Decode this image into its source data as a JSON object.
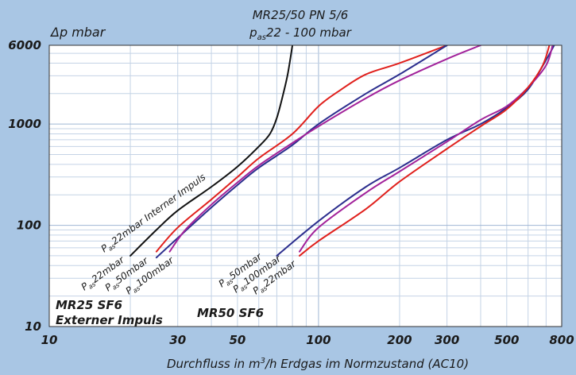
{
  "chart_data": {
    "type": "line",
    "title_line1": "MR25/50 PN 5/6",
    "title_line2_prefix": "p",
    "title_line2_sub": "as",
    "title_line2_rest": "22 - 100 mbar",
    "ylabel": "Δp  mbar",
    "xlabel_prefix": "Durchfluss in m",
    "xlabel_sup": "3",
    "xlabel_rest": "/h Erdgas im Normzustand (AC10)",
    "xscale": "log",
    "yscale": "log",
    "xlim": [
      10,
      800
    ],
    "ylim": [
      10,
      6000
    ],
    "x_ticks": [
      {
        "v": 10,
        "label": "10"
      },
      {
        "v": 30,
        "label": "30"
      },
      {
        "v": 50,
        "label": "50"
      },
      {
        "v": 100,
        "label": "100"
      },
      {
        "v": 200,
        "label": "200"
      },
      {
        "v": 300,
        "label": "300"
      },
      {
        "v": 500,
        "label": "500"
      },
      {
        "v": 800,
        "label": "800"
      }
    ],
    "y_ticks": [
      {
        "v": 10,
        "label": "10"
      },
      {
        "v": 100,
        "label": "100"
      },
      {
        "v": 1000,
        "label": "1000"
      },
      {
        "v": 6000,
        "label": "6000"
      }
    ],
    "grid": true,
    "group_labels": {
      "mr25_line1": "MR25 SF6",
      "mr25_line2": "Externer Impuls",
      "mr50": "MR50 SF6"
    },
    "series": [
      {
        "id": "mr25-22-intern",
        "name_prefix": "P",
        "name_sub": "as",
        "name_rest": "22mbar Interner Impuls",
        "color": "#111111",
        "points": [
          [
            20,
            50
          ],
          [
            25,
            90
          ],
          [
            30,
            140
          ],
          [
            40,
            240
          ],
          [
            50,
            380
          ],
          [
            60,
            600
          ],
          [
            66,
            800
          ],
          [
            70,
            1150
          ],
          [
            74,
            2000
          ],
          [
            77,
            3200
          ],
          [
            80,
            6000
          ]
        ]
      },
      {
        "id": "mr25-22",
        "name_prefix": "P",
        "name_sub": "as",
        "name_rest": "22mbar",
        "color": "#e0201c",
        "points": [
          [
            25,
            55
          ],
          [
            30,
            95
          ],
          [
            40,
            180
          ],
          [
            50,
            300
          ],
          [
            60,
            460
          ],
          [
            80,
            800
          ],
          [
            100,
            1500
          ],
          [
            120,
            2150
          ],
          [
            150,
            3100
          ],
          [
            200,
            4000
          ],
          [
            300,
            6000
          ]
        ]
      },
      {
        "id": "mr25-50",
        "name_prefix": "P",
        "name_sub": "as",
        "name_rest": "50mbar",
        "color": "#2c2e8e",
        "points": [
          [
            25,
            48
          ],
          [
            30,
            75
          ],
          [
            40,
            150
          ],
          [
            50,
            250
          ],
          [
            60,
            370
          ],
          [
            80,
            620
          ],
          [
            100,
            1000
          ],
          [
            150,
            2000
          ],
          [
            200,
            3100
          ],
          [
            300,
            6000
          ]
        ]
      },
      {
        "id": "mr25-100",
        "name_prefix": "P",
        "name_sub": "as",
        "name_rest": "100mbar",
        "color": "#a2229a",
        "points": [
          [
            28,
            55
          ],
          [
            32,
            90
          ],
          [
            40,
            160
          ],
          [
            50,
            265
          ],
          [
            60,
            390
          ],
          [
            80,
            650
          ],
          [
            100,
            950
          ],
          [
            150,
            1800
          ],
          [
            200,
            2700
          ],
          [
            300,
            4400
          ],
          [
            400,
            6000
          ]
        ]
      },
      {
        "id": "mr50-50",
        "name_prefix": "P",
        "name_sub": "as",
        "name_rest": "50mbar",
        "color": "#2c2e8e",
        "points": [
          [
            70,
            50
          ],
          [
            100,
            110
          ],
          [
            150,
            240
          ],
          [
            200,
            370
          ],
          [
            300,
            700
          ],
          [
            400,
            1000
          ],
          [
            500,
            1450
          ],
          [
            600,
            2200
          ],
          [
            700,
            4300
          ],
          [
            750,
            6000
          ]
        ]
      },
      {
        "id": "mr50-100",
        "name_prefix": "P",
        "name_sub": "as",
        "name_rest": "100mbar",
        "color": "#a2229a",
        "points": [
          [
            85,
            55
          ],
          [
            100,
            95
          ],
          [
            150,
            210
          ],
          [
            200,
            340
          ],
          [
            300,
            670
          ],
          [
            400,
            1100
          ],
          [
            500,
            1500
          ],
          [
            600,
            2300
          ],
          [
            700,
            3800
          ],
          [
            740,
            6000
          ]
        ]
      },
      {
        "id": "mr50-22",
        "name_prefix": "P",
        "name_sub": "as",
        "name_rest": "22mbar",
        "color": "#e0201c",
        "points": [
          [
            85,
            50
          ],
          [
            100,
            70
          ],
          [
            150,
            145
          ],
          [
            200,
            270
          ],
          [
            300,
            570
          ],
          [
            400,
            950
          ],
          [
            500,
            1400
          ],
          [
            600,
            2300
          ],
          [
            680,
            3800
          ],
          [
            720,
            6000
          ]
        ]
      }
    ]
  }
}
